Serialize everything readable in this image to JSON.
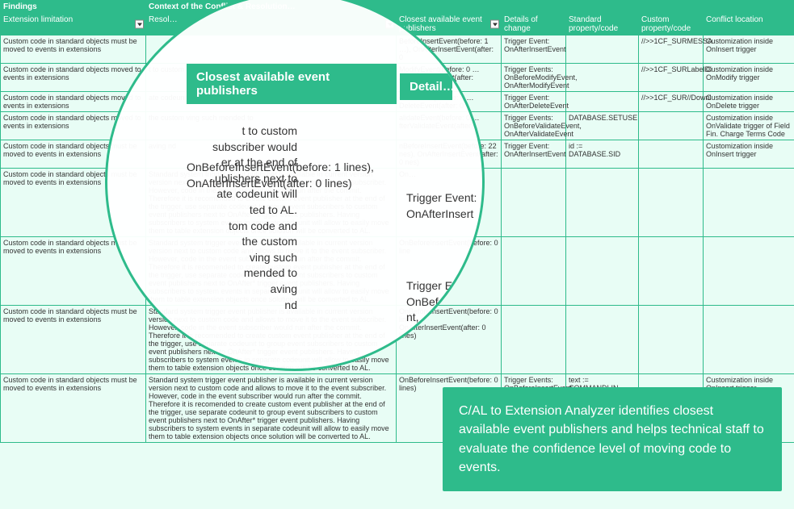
{
  "colors": {
    "primary": "#2ebb8b",
    "bgLight": "#e8fdf5"
  },
  "groupHeaders": {
    "findings": "Findings",
    "context": "Context of the Conflict & Resolution…"
  },
  "columns": {
    "ext": "Extension limitation",
    "resol": "Resol…",
    "closest": "Closest available event publishers",
    "details": "Details of change",
    "stdprop": "Standard property/code",
    "custprop": "Custom property/code",
    "loc": "Conflict location"
  },
  "rows": [
    {
      "ext": "Custom code in standard objects must be moved to events in extensions",
      "resol": "",
      "closest": "BeforeInsertEvent(before: 1 …), OnAfterInsertEvent(after: 0",
      "details": "Trigger Event: OnAfterInsertEvent",
      "stdprop": "",
      "custprop": "//>>1CF_SURMESSA",
      "loc": "Customization inside OnInsert trigger"
    },
    {
      "ext": "Custom code in standard objects moved to events in extensions",
      "resol": "t to custom subscriber would er at the end of ublishers next to",
      "closest": "ModifyEvent(before: 0 …AfterModifyEvent(after:",
      "details": "Trigger Events: OnBeforeModifyEvent, OnAfterModifyEvent",
      "stdprop": "",
      "custprop": "//>>1CF_SURLabelDi",
      "loc": "Customization inside OnModify trigger"
    },
    {
      "ext": "Custom code in standard objects moved to events in extensions",
      "resol": "ate codeunit will ted to AL. tom code and",
      "closest": "OnBeforeInsertEvent(before: 1 lines), OnAfterInsertEvent(after: 0 lines)",
      "closest2": "eleteEvent(before: 4 …DeleteEvent(after: 0",
      "details": "Trigger Event: OnAfterDeleteEvent",
      "stdprop": "",
      "custprop": "//>>1CF_SUR//Downl",
      "loc": "Customization inside OnDelete trigger"
    },
    {
      "ext": "Custom code in standard objects moved to events in extensions",
      "resol": "the custom ving such mended to",
      "closest": "alidateEvent(before: 0 …fterValidateEvent(after:",
      "details": "Trigger Events: OnBeforeValidateEvent, OnAfterValidateEvent",
      "stdprop": "DATABASE.SETUSE",
      "custprop": "",
      "loc": "Customization inside OnValidate trigger of Field Fin. Charge Terms Code"
    },
    {
      "ext": "Custom code in standard objects must be moved to events in extensions",
      "resol": "aving nd",
      "closest": "nBeforeInsertEvent(before: 22 nes), OnAfterInsertEvent(after: 0 nes)",
      "details": "Trigger Event: OnAfterInsertEvent",
      "stdprop": "id := DATABASE.SID",
      "custprop": "",
      "loc": "Customization inside OnInsert trigger"
    },
    {
      "ext": "Custom code in standard objects must be moved to events in extensions",
      "resol": "Standard system trigger event publisher is available in current version version next to custom code and allows to move it to the event subscriber. However, code in the event subscriber would run after the commit. Therefore it is recomended to create custom event publisher at the end of the trigger, use separate codeunit to group event subscribers to custom event publishers next to OnAfter* trigger event publishers. Having subscribers to system events in separate codeunit will allow to easily move them to table extension objects once solution will be converted to AL.",
      "closest": "On…",
      "details": "",
      "stdprop": "",
      "custprop": "",
      "loc": ""
    },
    {
      "ext": "Custom code in standard objects must be moved to events in extensions",
      "resol": "Standard system trigger event publisher is available in current version version next to custom code and allows to move it to the event subscriber. However, code in the event subscriber would run after the commit. Therefore it is recomended to create custom event publisher at the end of the trigger, use separate codeunit to group event subscribers to custom event publishers next to OnAfter* trigger event publishers. Having subscribers to system events in separate codeunit will allow to easily move them to table extension objects once solution will be converted to AL.",
      "closest": "OnBeforeInsertEvent(before: 0 line",
      "details": "",
      "stdprop": "",
      "custprop": "",
      "loc": ""
    },
    {
      "ext": "Custom code in standard objects must be moved to events in extensions",
      "resol": "Standard system trigger event publisher is available in current version version next to custom code and allows to move it to the event subscriber. However, code in the event subscriber would run after the commit. Therefore it is recomended to create custom event publisher at the end of the trigger, use separate codeunit to group event subscribers to custom event publishers next to OnAfter* trigger event publishers. Having subscribers to system events in separate codeunit will allow to easily move them to table extension objects once solution will be converted to AL.",
      "closest": "OnBeforeInsertEvent(before: 0 lines), OnAfterInsertEvent(after: 0 lines)",
      "details": "",
      "stdprop": "",
      "custprop": "",
      "loc": ""
    },
    {
      "ext": "Custom code in standard objects must be moved to events in extensions",
      "resol": "Standard system trigger event publisher is available in current version version next to custom code and allows to move it to the event subscriber. However, code in the event subscriber would run after the commit. Therefore it is recomended to create custom event publisher at the end of the trigger, use separate codeunit to group event subscribers to custom event publishers next to OnAfter* trigger event publishers. Having subscribers to system events in separate codeunit will allow to easily move them to table extension objects once solution will be converted to AL.",
      "closest": "OnBeforeInsertEvent(before: 0 lines)",
      "details": "Trigger Events: OnBeforeInsertEvent,",
      "stdprop": "text := COMMANDLIN",
      "custprop": "",
      "loc": "Customization inside OnInsert trigger"
    }
  ],
  "magnifier": {
    "header1": "Closest available event publishers",
    "header2": "Detail…",
    "leftText": "t to custom\nsubscriber would\ner at the end of\nublishers next to\nate codeunit will\nted to AL.\ntom code and\nthe custom\nving such\nmended to\naving\nnd",
    "centerText": "OnBeforeInsertEvent(before: 1 lines),\nOnAfterInsertEvent(after: 0 lines)",
    "rightText1": "Trigger Event:\nOnAfterInsert",
    "rightText2": "Trigger E\nOnBef\nnt,"
  },
  "callout": "C/AL to Extension Analyzer identifies closest available event publishers and helps technical staff to evaluate the confidence level of moving code to events.",
  "colWidths": {
    "ext": "180px",
    "resol": "310px",
    "closest": "130px",
    "details": "80px",
    "stdprop": "90px",
    "custprop": "80px",
    "loc": "113px"
  }
}
